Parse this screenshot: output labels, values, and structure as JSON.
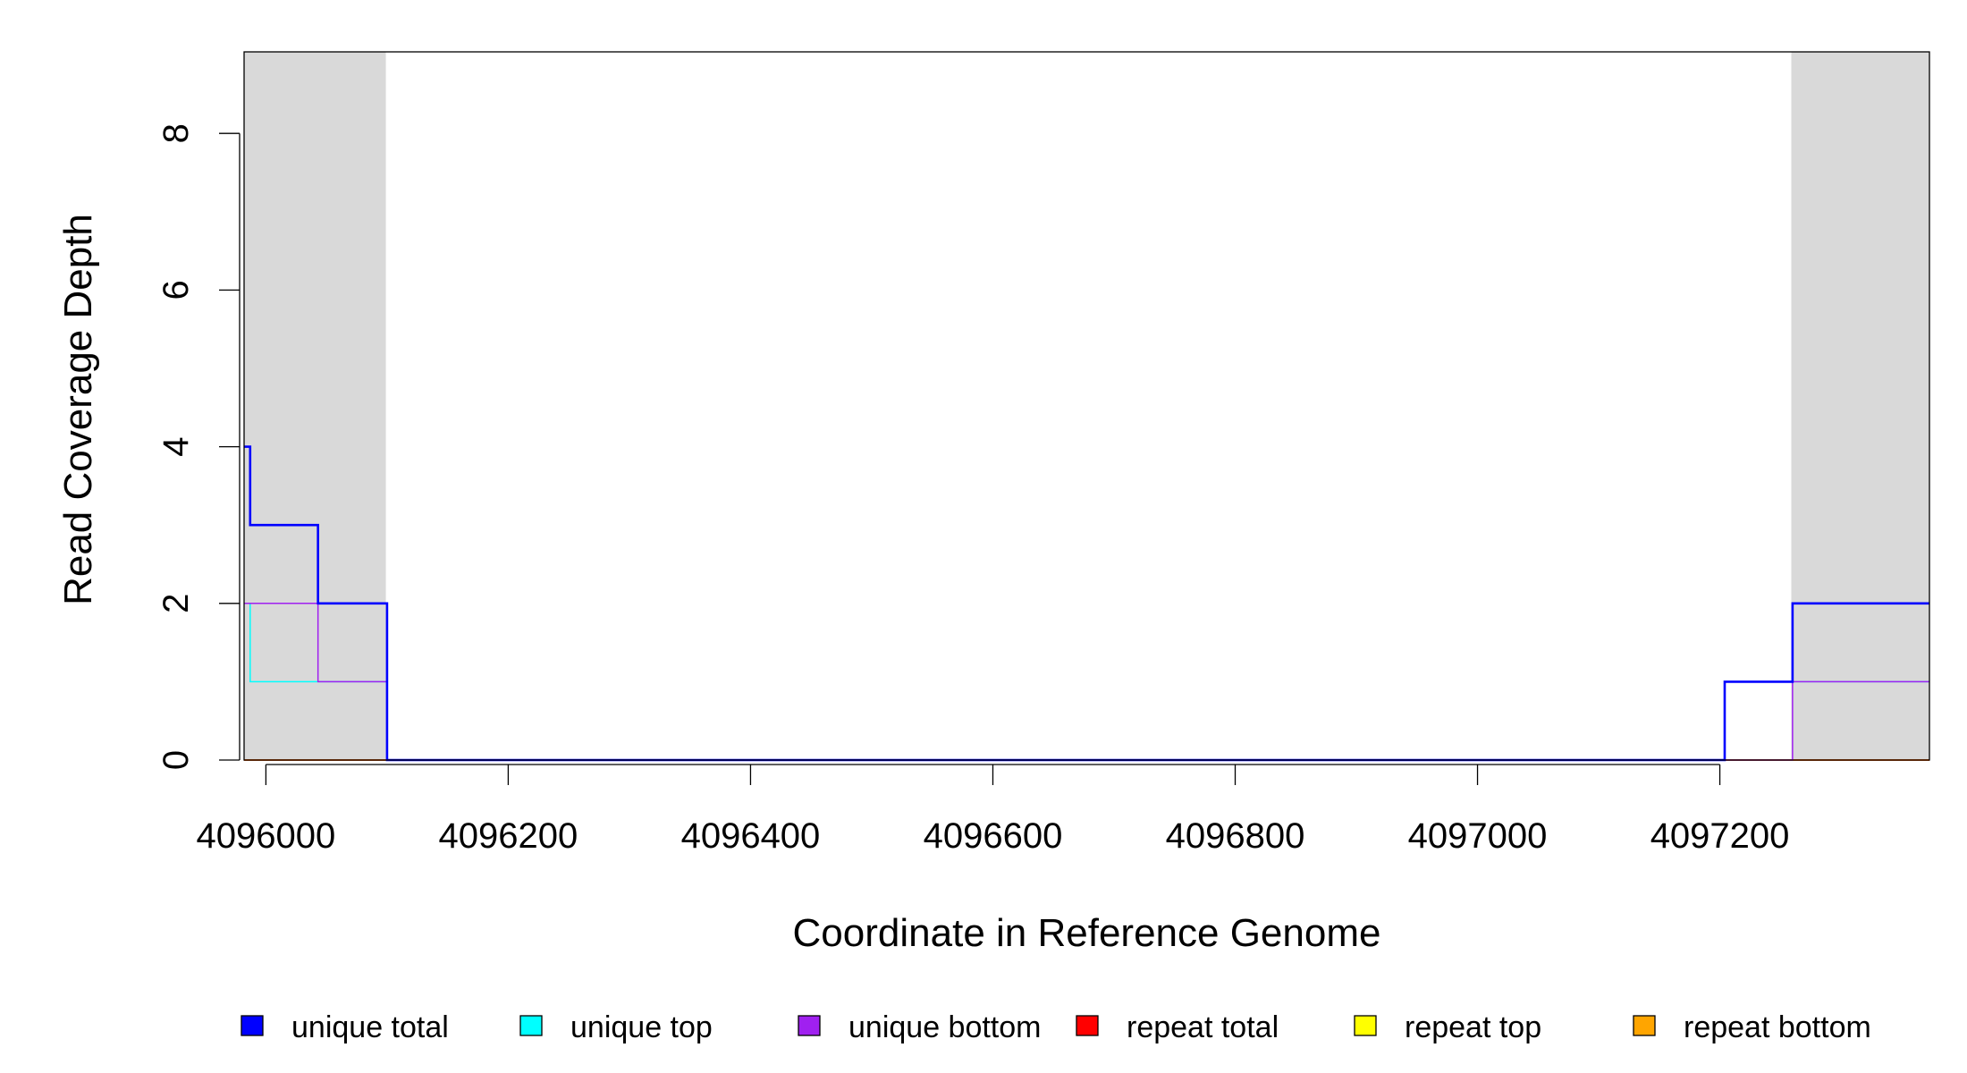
{
  "chart_data": {
    "type": "line",
    "title": "",
    "xlabel": "Coordinate in Reference Genome",
    "ylabel": "Read Coverage Depth",
    "xlim": [
      4095982,
      4097373
    ],
    "ylim": [
      0,
      9
    ],
    "x_ticks": [
      4096000,
      4096200,
      4096400,
      4096600,
      4096800,
      4097000,
      4097200
    ],
    "x_tick_labels": [
      "4096000",
      "4096200",
      "4096400",
      "4096600",
      "4096800",
      "4097000",
      "4097200"
    ],
    "y_ticks": [
      0,
      2,
      4,
      6,
      8
    ],
    "y_tick_labels": [
      "0",
      "2",
      "4",
      "6",
      "8"
    ],
    "shaded_regions": [
      {
        "from": 4095982,
        "to": 4096099,
        "color": "#d9d9d9"
      },
      {
        "from": 4097259,
        "to": 4097373,
        "color": "#d9d9d9"
      }
    ],
    "series": [
      {
        "name": "unique total",
        "color": "#0000ff",
        "x": [
          4095982,
          4095987,
          4096043,
          4096099,
          4096100,
          4097203,
          4097204,
          4097259,
          4097260,
          4097373
        ],
        "y": [
          4,
          3,
          2,
          2,
          0,
          0,
          1,
          1,
          2,
          2
        ]
      },
      {
        "name": "unique top",
        "color": "#00ffff",
        "x": [
          4095982,
          4095987,
          4096099,
          4096100,
          4097203,
          4097204,
          4097373
        ],
        "y": [
          2,
          1,
          1,
          0,
          0,
          1,
          1
        ]
      },
      {
        "name": "unique bottom",
        "color": "#a020f0",
        "x": [
          4095982,
          4096043,
          4096099,
          4096100,
          4097259,
          4097260,
          4097373
        ],
        "y": [
          2,
          1,
          1,
          0,
          0,
          1,
          1
        ]
      },
      {
        "name": "repeat total",
        "color": "#ff0000",
        "x": [
          4095982,
          4097373
        ],
        "y": [
          0,
          0
        ]
      },
      {
        "name": "repeat top",
        "color": "#ffff00",
        "x": [
          4095982,
          4097373
        ],
        "y": [
          0,
          0
        ]
      },
      {
        "name": "repeat bottom",
        "color": "#ffa500",
        "x": [
          4095982,
          4097373
        ],
        "y": [
          0,
          0
        ]
      }
    ],
    "legend": {
      "placement": "bottom",
      "items": [
        {
          "label": "unique total",
          "color": "#0000ff"
        },
        {
          "label": "unique top",
          "color": "#00ffff"
        },
        {
          "label": "unique bottom",
          "color": "#a020f0"
        },
        {
          "label": "repeat total",
          "color": "#ff0000"
        },
        {
          "label": "repeat top",
          "color": "#ffff00"
        },
        {
          "label": "repeat bottom",
          "color": "#ffa500"
        }
      ]
    }
  }
}
